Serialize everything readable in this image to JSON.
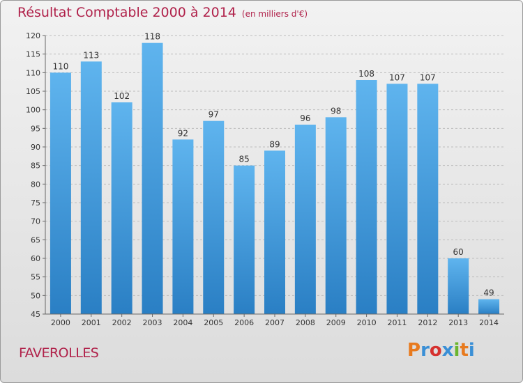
{
  "header": {
    "title": "Résultat Comptable 2000 à 2014",
    "subtitle": "(en milliers d'€)"
  },
  "footer": {
    "town": "FAVEROLLES",
    "logo": "Proxiti",
    "logo_colors": [
      "#e87a1e",
      "#3a8fd6",
      "#d6312f",
      "#3a8fd6",
      "#6bb52e",
      "#e87a1e",
      "#3a8fd6"
    ]
  },
  "colors": {
    "title": "#b0214a",
    "bar_top": "#5fb4ee",
    "bar_bottom": "#2a7fc4",
    "grid": "#bcbcbc"
  },
  "chart_data": {
    "type": "bar",
    "categories": [
      "2000",
      "2001",
      "2002",
      "2003",
      "2004",
      "2005",
      "2006",
      "2007",
      "2008",
      "2009",
      "2010",
      "2011",
      "2012",
      "2013",
      "2014"
    ],
    "values": [
      110,
      113,
      102,
      118,
      92,
      97,
      85,
      89,
      96,
      98,
      108,
      107,
      107,
      60,
      49
    ],
    "ylim": [
      45,
      120
    ],
    "yticks": [
      45,
      50,
      55,
      60,
      65,
      70,
      75,
      80,
      85,
      90,
      95,
      100,
      105,
      110,
      115,
      120
    ],
    "grid": true,
    "data_labels": true
  }
}
